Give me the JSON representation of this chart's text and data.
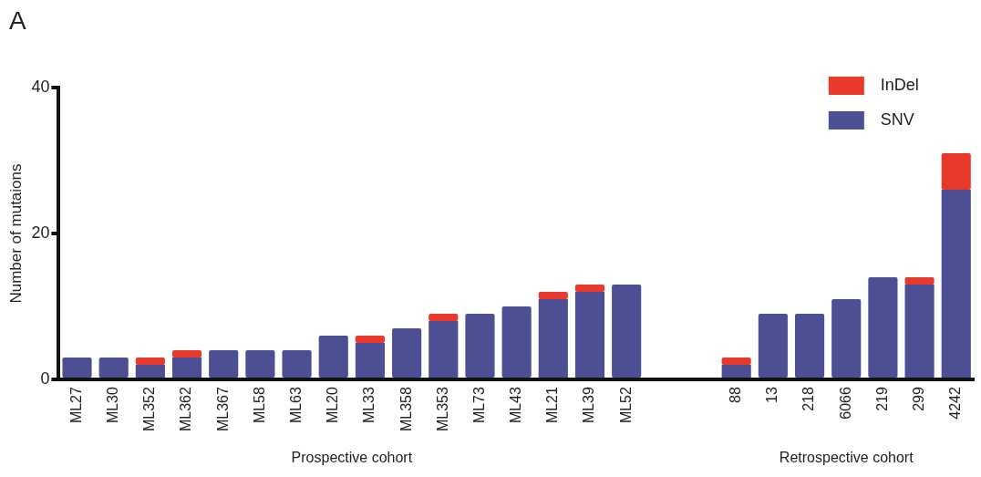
{
  "chart_data": {
    "type": "bar",
    "stacked": true,
    "ylabel": "Number of mutaions",
    "categories": [
      "ML27",
      "ML30",
      "ML352",
      "ML362",
      "ML367",
      "ML58",
      "ML63",
      "ML20",
      "ML33",
      "ML358",
      "ML353",
      "ML73",
      "ML43",
      "ML21",
      "ML39",
      "ML52",
      null,
      null,
      "88",
      "13",
      "218",
      "6066",
      "219",
      "299",
      "4242"
    ],
    "series": [
      {
        "name": "SNV",
        "color": "#4c4f93",
        "values": [
          3,
          3,
          2,
          3,
          4,
          4,
          4,
          6,
          5,
          7,
          8,
          9,
          10,
          11,
          12,
          13,
          null,
          null,
          2,
          9,
          9,
          11,
          14,
          13,
          26
        ]
      },
      {
        "name": "InDel",
        "color": "#e8392b",
        "values": [
          0,
          0,
          1,
          1,
          0,
          0,
          0,
          0,
          1,
          0,
          1,
          0,
          0,
          1,
          1,
          0,
          null,
          null,
          1,
          0,
          0,
          0,
          0,
          1,
          5
        ]
      }
    ],
    "ylim": [
      0,
      40
    ],
    "yticks": [
      0,
      20,
      40
    ],
    "grid": false,
    "legend": "top right",
    "annotations": [
      "A",
      "Prospective cohort",
      "Retrospective cohort"
    ]
  }
}
